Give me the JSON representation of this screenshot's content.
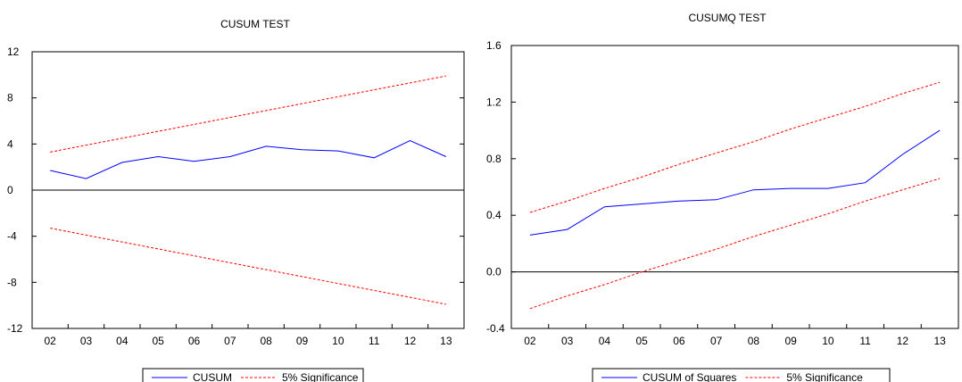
{
  "colors": {
    "series": "#0000ff",
    "bands": "#ff0000",
    "axis": "#000000"
  },
  "chart_data": [
    {
      "type": "line",
      "title": "CUSUM TEST",
      "x": [
        "02",
        "03",
        "04",
        "05",
        "06",
        "07",
        "08",
        "09",
        "10",
        "11",
        "12",
        "13"
      ],
      "ylim": [
        -12,
        12
      ],
      "yticks": [
        "12",
        "8",
        "4",
        "0",
        "-4",
        "-8",
        "-12"
      ],
      "yticks_values": [
        12,
        8,
        4,
        0,
        -4,
        -8,
        -12
      ],
      "zero_line": true,
      "series": [
        {
          "name": "CUSUM",
          "style": "solid",
          "color": "#0000ff",
          "values": [
            1.7,
            1.0,
            2.4,
            2.9,
            2.5,
            2.9,
            3.8,
            3.5,
            3.4,
            2.8,
            4.3,
            2.9
          ]
        },
        {
          "name": "5% Significance",
          "style": "dashed",
          "color": "#ff0000",
          "values": [
            3.3,
            3.9,
            4.5,
            5.1,
            5.7,
            6.3,
            6.9,
            7.5,
            8.1,
            8.7,
            9.3,
            9.9
          ]
        },
        {
          "name": "",
          "style": "dashed",
          "color": "#ff0000",
          "values": [
            -3.3,
            -3.9,
            -4.5,
            -5.1,
            -5.7,
            -6.3,
            -6.9,
            -7.5,
            -8.1,
            -8.7,
            -9.3,
            -9.9
          ]
        }
      ],
      "legend": [
        {
          "label": "CUSUM",
          "style": "solid",
          "color": "#0000ff"
        },
        {
          "label": "5% Significance",
          "style": "dashed",
          "color": "#ff0000"
        }
      ],
      "legend_position": "bottom-center"
    },
    {
      "type": "line",
      "title": "CUSUMQ TEST",
      "x": [
        "02",
        "03",
        "04",
        "05",
        "06",
        "07",
        "08",
        "09",
        "10",
        "11",
        "12",
        "13"
      ],
      "ylim": [
        -0.4,
        1.6
      ],
      "yticks": [
        "1.6",
        "1.2",
        "0.8",
        "0.4",
        "0.0",
        "-0.4"
      ],
      "yticks_values": [
        1.6,
        1.2,
        0.8,
        0.4,
        0.0,
        -0.4
      ],
      "zero_line": true,
      "series": [
        {
          "name": "CUSUM of Squares",
          "style": "solid",
          "color": "#0000ff",
          "values": [
            0.26,
            0.3,
            0.46,
            0.48,
            0.5,
            0.51,
            0.58,
            0.59,
            0.59,
            0.63,
            0.83,
            1.0
          ]
        },
        {
          "name": "5% Significance",
          "style": "dashed",
          "color": "#ff0000",
          "values": [
            0.42,
            0.5,
            0.59,
            0.67,
            0.76,
            0.84,
            0.92,
            1.01,
            1.09,
            1.17,
            1.26,
            1.34
          ]
        },
        {
          "name": "",
          "style": "dashed",
          "color": "#ff0000",
          "values": [
            -0.26,
            -0.17,
            -0.09,
            0.0,
            0.08,
            0.16,
            0.25,
            0.33,
            0.41,
            0.5,
            0.58,
            0.66
          ]
        }
      ],
      "legend": [
        {
          "label": "CUSUM of Squares",
          "style": "solid",
          "color": "#0000ff"
        },
        {
          "label": "5% Significance",
          "style": "dashed",
          "color": "#ff0000"
        }
      ],
      "legend_position": "bottom-center"
    }
  ]
}
